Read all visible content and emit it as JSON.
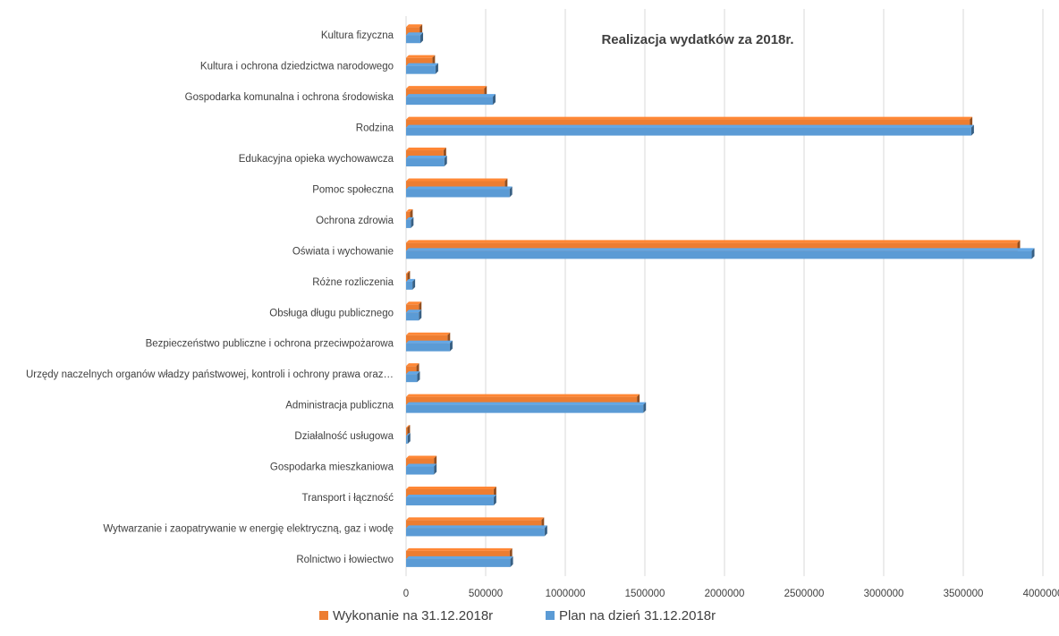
{
  "chart_data": {
    "type": "bar",
    "orientation": "horizontal",
    "title": "Realizacja wydatków za 2018r.",
    "xlabel": "",
    "ylabel": "",
    "xlim": [
      0,
      4000000
    ],
    "x_ticks": [
      "0",
      "500000",
      "1000000",
      "1500000",
      "2000000",
      "2500000",
      "3000000",
      "3500000",
      "4000000"
    ],
    "x_tick_values": [
      0,
      500000,
      1000000,
      1500000,
      2000000,
      2500000,
      3000000,
      3500000,
      4000000
    ],
    "grid": "vertical",
    "legend_position": "bottom",
    "categories": [
      "Kultura fizyczna",
      "Kultura i ochrona dziedzictwa narodowego",
      "Gospodarka komunalna i ochrona środowiska",
      "Rodzina",
      "Edukacyjna opieka wychowawcza",
      "Pomoc społeczna",
      "Ochrona zdrowia",
      "Oświata i wychowanie",
      "Różne rozliczenia",
      "Obsługa długu publicznego",
      "Bezpieczeństwo publiczne i ochrona przeciwpożarowa",
      "Urzędy naczelnych organów władzy państwowej, kontroli i ochrony prawa oraz…",
      "Administracja publiczna",
      "Działalność usługowa",
      "Gospodarka mieszkaniowa",
      "Transport i łączność",
      "Wytwarzanie i zaopatrywanie w energię elektryczną, gaz i wodę",
      "Rolnictwo i łowiectwo"
    ],
    "series": [
      {
        "name": "Wykonanie na 31.12.2018r",
        "color": "#ED7D31",
        "values": [
          85000,
          165000,
          490000,
          3540000,
          235000,
          620000,
          25000,
          3840000,
          8000,
          80000,
          260000,
          65000,
          1450000,
          8000,
          175000,
          550000,
          850000,
          650000
        ]
      },
      {
        "name": "Plan na dzień 31.12.2018r",
        "color": "#5B9BD5",
        "values": [
          90000,
          185000,
          545000,
          3550000,
          240000,
          650000,
          30000,
          3930000,
          40000,
          80000,
          275000,
          70000,
          1490000,
          10000,
          175000,
          550000,
          870000,
          655000
        ]
      }
    ]
  }
}
